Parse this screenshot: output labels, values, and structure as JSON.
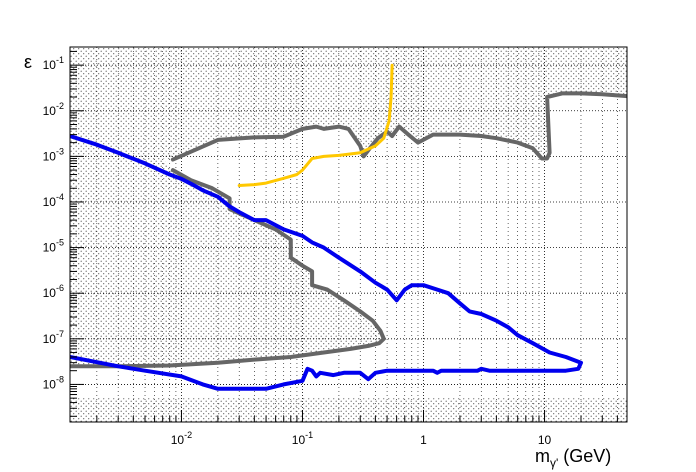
{
  "chart_data": {
    "type": "line",
    "title": "",
    "xlabel": "mγ' (GeV)",
    "xlabel_main": "m",
    "xlabel_sub": "γ'",
    "xlabel_unit": " (GeV)",
    "ylabel": "ε",
    "x_scale": "log",
    "y_scale": "log",
    "xlim": [
      0.0012,
      48
    ],
    "ylim": [
      1.5e-09,
      0.25
    ],
    "grid": true,
    "x_ticks": [
      {
        "value": 0.01,
        "base": "10",
        "exp": "-2"
      },
      {
        "value": 0.1,
        "base": "10",
        "exp": "-1"
      },
      {
        "value": 1,
        "base": "1",
        "exp": ""
      },
      {
        "value": 10,
        "base": "10",
        "exp": ""
      }
    ],
    "y_ticks": [
      {
        "value": 1e-08,
        "base": "10",
        "exp": "-8"
      },
      {
        "value": 1e-07,
        "base": "10",
        "exp": "-7"
      },
      {
        "value": 1e-06,
        "base": "10",
        "exp": "-6"
      },
      {
        "value": 1e-05,
        "base": "10",
        "exp": "-5"
      },
      {
        "value": 0.0001,
        "base": "10",
        "exp": "-4"
      },
      {
        "value": 0.001,
        "base": "10",
        "exp": "-3"
      },
      {
        "value": 0.01,
        "base": "10",
        "exp": "-2"
      },
      {
        "value": 0.1,
        "base": "10",
        "exp": "-1"
      }
    ],
    "colors": {
      "gray": "#666666",
      "blue": "#0000ee",
      "gold": "#ffc800",
      "hatch": "#555555"
    },
    "series": [
      {
        "id": "gray-upper",
        "color": "#666666",
        "x": [
          0.0085,
          0.02,
          0.04,
          0.07,
          0.1,
          0.13,
          0.15,
          0.2,
          0.24,
          0.3,
          0.32,
          0.36,
          0.42,
          0.5,
          0.55,
          0.63,
          0.75,
          0.9,
          1.2,
          2,
          3,
          4,
          6,
          8,
          9.5,
          10.5,
          11,
          10.5,
          14,
          20,
          30,
          48
        ],
        "y": [
          0.00085,
          0.0023,
          0.0026,
          0.0027,
          0.004,
          0.0045,
          0.004,
          0.0045,
          0.004,
          0.0017,
          0.001,
          0.0015,
          0.0025,
          0.0035,
          0.0028,
          0.0045,
          0.003,
          0.002,
          0.003,
          0.003,
          0.0028,
          0.0025,
          0.002,
          0.0015,
          0.0009,
          0.0009,
          0.0012,
          0.02,
          0.024,
          0.024,
          0.023,
          0.021
        ]
      },
      {
        "id": "gray-lower",
        "color": "#666666",
        "x": [
          0.0085,
          0.012,
          0.018,
          0.025,
          0.025,
          0.04,
          0.06,
          0.08,
          0.08,
          0.1,
          0.12,
          0.12,
          0.16,
          0.22,
          0.3,
          0.38,
          0.44,
          0.47,
          0.43,
          0.35,
          0.25,
          0.15,
          0.08,
          0.04,
          0.02,
          0.008,
          0.003,
          0.0012
        ],
        "y": [
          0.0005,
          0.0003,
          0.0002,
          0.00012,
          7e-05,
          4e-05,
          2.5e-05,
          1.5e-05,
          6e-06,
          4e-06,
          3e-06,
          1.5e-06,
          1.2e-06,
          7e-07,
          4e-07,
          2.5e-07,
          1.5e-07,
          1e-07,
          8e-08,
          7e-08,
          6e-08,
          5e-08,
          4e-08,
          3.5e-08,
          3e-08,
          2.6e-08,
          2.5e-08,
          2.5e-08
        ]
      },
      {
        "id": "blue",
        "color": "#0000ee",
        "x": [
          0.0012,
          0.002,
          0.003,
          0.005,
          0.008,
          0.01,
          0.012,
          0.015,
          0.02,
          0.025,
          0.03,
          0.04,
          0.05,
          0.07,
          0.1,
          0.12,
          0.15,
          0.2,
          0.3,
          0.4,
          0.5,
          0.6,
          0.7,
          0.8,
          1.0,
          1.3,
          1.6,
          2,
          2.4,
          3,
          4,
          5,
          6,
          8,
          11,
          15,
          20,
          19,
          15,
          10,
          8,
          5,
          3.5,
          3,
          2.8,
          2.5,
          2,
          1.6,
          1.4,
          1.3,
          1.2,
          0.8,
          0.5,
          0.4,
          0.35,
          0.3,
          0.22,
          0.18,
          0.14,
          0.13,
          0.12,
          0.11,
          0.1,
          0.07,
          0.05,
          0.03,
          0.02,
          0.015,
          0.01,
          0.005,
          0.003,
          0.0012
        ],
        "y": [
          0.0028,
          0.0018,
          0.0012,
          0.0007,
          0.0004,
          0.00032,
          0.00025,
          0.00018,
          0.00013,
          8e-05,
          6e-05,
          4e-05,
          4e-05,
          2.5e-05,
          1.8e-05,
          1.3e-05,
          1e-05,
          6e-06,
          3e-06,
          1.7e-06,
          1.2e-06,
          7e-07,
          1.2e-06,
          1.5e-06,
          1.5e-06,
          1.2e-06,
          1e-06,
          6e-07,
          4e-07,
          3.5e-07,
          2.5e-07,
          1.8e-07,
          1.2e-07,
          8e-08,
          5e-08,
          4e-08,
          3e-08,
          2.2e-08,
          2e-08,
          2e-08,
          2e-08,
          2e-08,
          2e-08,
          2.2e-08,
          2e-08,
          2e-08,
          2e-08,
          2e-08,
          2e-08,
          1.8e-08,
          2e-08,
          2e-08,
          2e-08,
          1.8e-08,
          1.3e-08,
          1.8e-08,
          1.8e-08,
          1.6e-08,
          1.8e-08,
          1.5e-08,
          2e-08,
          2.2e-08,
          1.2e-08,
          1e-08,
          8e-09,
          8e-09,
          8e-09,
          1e-08,
          1.5e-08,
          2e-08,
          2.5e-08,
          4e-08
        ]
      },
      {
        "id": "gold",
        "color": "#ffc800",
        "x": [
          0.03,
          0.04,
          0.05,
          0.07,
          0.09,
          0.1,
          0.12,
          0.15,
          0.2,
          0.3,
          0.4,
          0.47,
          0.52,
          0.54,
          0.55
        ],
        "y": [
          0.00023,
          0.00024,
          0.00026,
          0.00033,
          0.0004,
          0.0005,
          0.0009,
          0.001,
          0.00105,
          0.0012,
          0.0017,
          0.0025,
          0.006,
          0.02,
          0.1
        ]
      }
    ]
  }
}
